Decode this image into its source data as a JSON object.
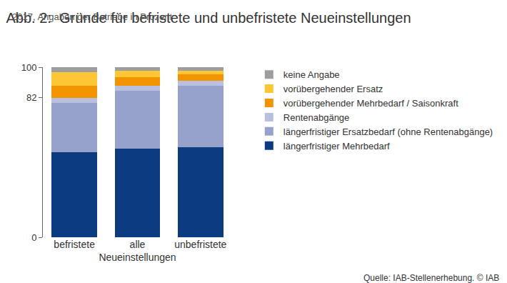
{
  "chart_data": {
    "type": "bar",
    "stacked": true,
    "title": "Abb. 2:  Gründe für befristete und unbefristete Neueinstellungen",
    "subtitle": "2017, Angaben der Betriebe in Prozent",
    "x_label": "Neueinstellungen",
    "source": "Quelle: IAB-Stellenerhebung. © IAB",
    "categories": [
      "befristete",
      "alle",
      "unbefristete"
    ],
    "series": [
      {
        "name": "längerfristiger Mehrbedarf",
        "color": "#0d3b80",
        "values": [
          50,
          52,
          53
        ]
      },
      {
        "name": "längerfristiger Ersatzbedarf (ohne Rentenabgänge)",
        "color": "#96a2cb",
        "values": [
          29,
          34,
          36
        ]
      },
      {
        "name": "Rentenabgänge",
        "color": "#b9bfdf",
        "values": [
          3,
          3,
          3
        ]
      },
      {
        "name": "vorübergehender Mehrbedarf / Saisonkraft",
        "color": "#f29400",
        "values": [
          7,
          5,
          4
        ]
      },
      {
        "name": "vorübergehender Ersatz",
        "color": "#fdc634",
        "values": [
          8,
          4,
          2
        ]
      },
      {
        "name": "keine Angabe",
        "color": "#9d9d9d",
        "values": [
          3,
          2,
          2
        ]
      }
    ],
    "ylim": [
      0,
      100
    ],
    "yticks": [
      0,
      82,
      100
    ],
    "grid": false,
    "legend": "right"
  }
}
